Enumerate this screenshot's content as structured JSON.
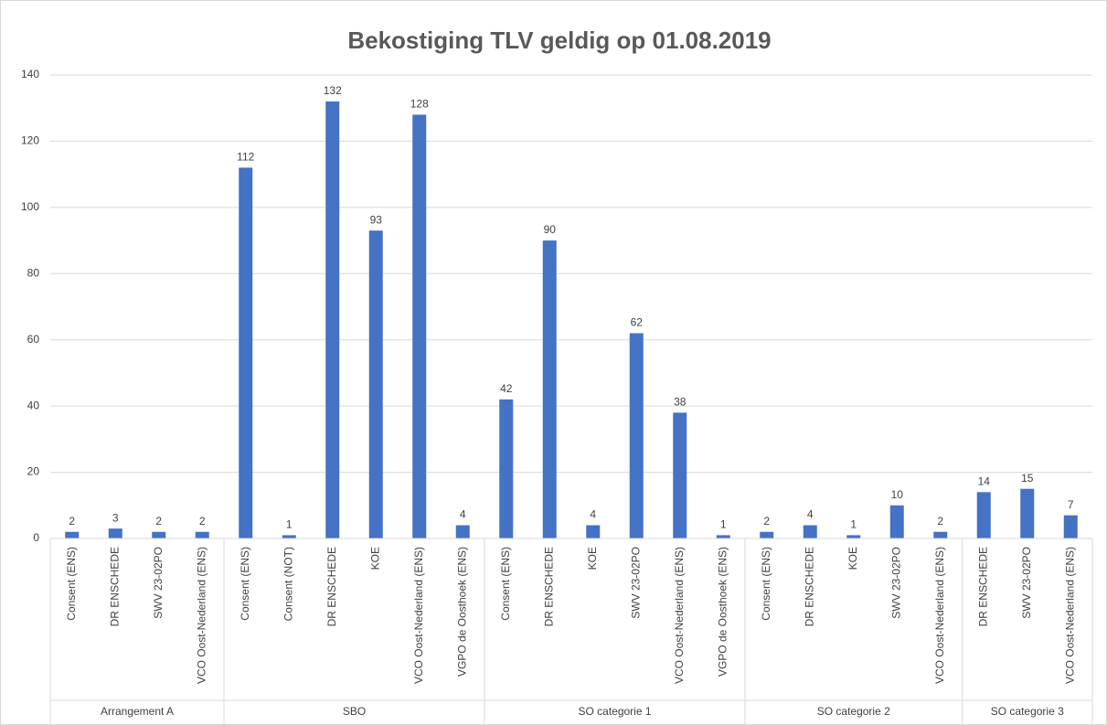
{
  "chart_data": {
    "type": "bar",
    "title": "Bekostiging TLV geldig op 01.08.2019",
    "groups": [
      {
        "label": "Arrangement A",
        "categories": [
          "Consent (ENS)",
          "DR ENSCHEDE",
          "SWV 23-02PO",
          "VCO Oost-Nederland (ENS)"
        ]
      },
      {
        "label": "SBO",
        "categories": [
          "Consent (ENS)",
          "Consent (NOT)",
          "DR ENSCHEDE",
          "KOE",
          "VCO Oost-Nederland (ENS)",
          "VGPO de Oosthoek (ENS)"
        ]
      },
      {
        "label": "SO categorie 1",
        "categories": [
          "Consent (ENS)",
          "DR ENSCHEDE",
          "KOE",
          "SWV 23-02PO",
          "VCO Oost-Nederland (ENS)",
          "VGPO de Oosthoek (ENS)"
        ]
      },
      {
        "label": "SO categorie 2",
        "categories": [
          "Consent (ENS)",
          "DR ENSCHEDE",
          "KOE",
          "SWV 23-02PO",
          "VCO Oost-Nederland (ENS)"
        ]
      },
      {
        "label": "SO categorie 3",
        "categories": [
          "DR ENSCHEDE",
          "SWV 23-02PO",
          "VCO Oost-Nederland (ENS)"
        ]
      }
    ],
    "values": [
      2,
      3,
      2,
      2,
      112,
      1,
      132,
      93,
      128,
      4,
      42,
      90,
      4,
      62,
      38,
      1,
      2,
      4,
      1,
      10,
      2,
      14,
      15,
      7
    ],
    "color": "#4472c4",
    "ylim": [
      0,
      140
    ],
    "yticks": [
      0,
      20,
      40,
      60,
      80,
      100,
      120,
      140
    ],
    "grid": true
  }
}
